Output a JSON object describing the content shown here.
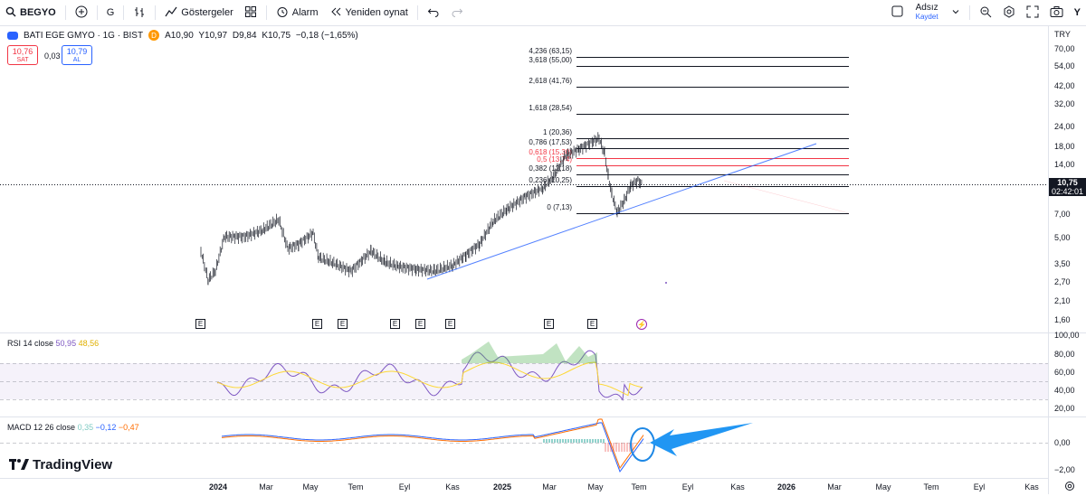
{
  "toolbar": {
    "symbol": "BEGYO",
    "interval": "G",
    "indicators_label": "Göstergeler",
    "alarm_label": "Alarm",
    "replay_label": "Yeniden oynat",
    "layout_name": "Adsız",
    "save_label": "Kaydet",
    "corner_letter": "Y"
  },
  "legend": {
    "title": "BATI EGE GMYO · 1G · BIST",
    "interval_badge": "D",
    "open": "A10,90",
    "high": "Y10,97",
    "low": "D9,84",
    "close": "K10,75",
    "change": "−0,18 (−1,65%)"
  },
  "trade": {
    "sell_price": "10,76",
    "sell_label": "SAT",
    "spread": "0,03",
    "buy_price": "10,79",
    "buy_label": "AL"
  },
  "price_axis": {
    "currency": "TRY",
    "ticks": [
      "70,00",
      "54,00",
      "42,00",
      "32,00",
      "24,00",
      "18,00",
      "14,00",
      "7,00",
      "5,00",
      "3,50",
      "2,70",
      "2,10",
      "1,60"
    ],
    "last_price": "10,75",
    "countdown": "02:42:01"
  },
  "fib_levels": [
    {
      "label": "4,236 (63,15)",
      "color": "#131722"
    },
    {
      "label": "3,618 (55,00)",
      "color": "#131722"
    },
    {
      "label": "2,618 (41,76)",
      "color": "#131722"
    },
    {
      "label": "1,618 (28,54)",
      "color": "#131722"
    },
    {
      "label": "1 (20,36)",
      "color": "#131722"
    },
    {
      "label": "0,786 (17,53)",
      "color": "#131722"
    },
    {
      "label": "0,618 (15,30)",
      "color": "#f23645"
    },
    {
      "label": "0,5 (13,74)",
      "color": "#f23645"
    },
    {
      "label": "0,382 (12,18)",
      "color": "#131722"
    },
    {
      "label": "0,236 (10,25)",
      "color": "#131722"
    },
    {
      "label": "0 (7,13)",
      "color": "#131722"
    }
  ],
  "events": {
    "earnings_label": "E",
    "split_icon": "lightning-icon"
  },
  "rsi": {
    "label": "RSI 14 close",
    "value1": "50,95",
    "value2": "48,56",
    "ticks": [
      "100,00",
      "80,00",
      "60,00",
      "40,00",
      "20,00"
    ]
  },
  "macd": {
    "label": "MACD 12 26 close",
    "hist": "0,35",
    "macd": "−0,12",
    "signal": "−0,47",
    "ticks": [
      "0,00",
      "−2,00"
    ]
  },
  "time_axis": [
    "2024",
    "Mar",
    "May",
    "Tem",
    "Eyl",
    "Kas",
    "2025",
    "Mar",
    "May",
    "Tem",
    "Eyl",
    "Kas",
    "2026",
    "Mar",
    "May",
    "Tem",
    "Eyl",
    "Kas"
  ],
  "brand": "TradingView",
  "colors": {
    "accent": "#2962ff",
    "down": "#f23645",
    "rsi_line": "#7e57c2",
    "rsi_ma": "#fdd835",
    "macd_line": "#2962ff",
    "signal_line": "#ff6d00",
    "annotation": "#2196f3"
  }
}
